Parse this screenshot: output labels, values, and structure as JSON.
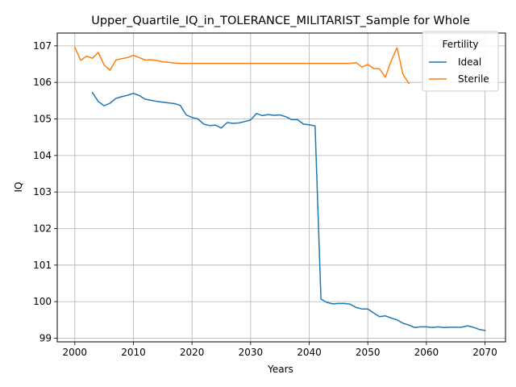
{
  "chart_data": {
    "type": "line",
    "title": "Upper_Quartile_IQ_in_TOLERANCE_MILITARIST_Sample for Whole",
    "xlabel": "Years",
    "ylabel": "IQ",
    "xlim": [
      1997,
      2073.5
    ],
    "ylim": [
      98.9,
      107.35
    ],
    "xticks": [
      2000,
      2010,
      2020,
      2030,
      2040,
      2050,
      2060,
      2070
    ],
    "yticks": [
      99,
      100,
      101,
      102,
      103,
      104,
      105,
      106,
      107
    ],
    "grid": true,
    "legend": {
      "title": "Fertility",
      "placement": "top-right"
    },
    "series": [
      {
        "name": "Ideal",
        "color": "#1f77b4",
        "x": [
          2003,
          2004,
          2005,
          2006,
          2007,
          2008,
          2009,
          2010,
          2011,
          2012,
          2013,
          2014,
          2015,
          2016,
          2017,
          2018,
          2019,
          2020,
          2021,
          2022,
          2023,
          2024,
          2025,
          2026,
          2027,
          2028,
          2029,
          2030,
          2031,
          2032,
          2033,
          2034,
          2035,
          2036,
          2037,
          2038,
          2039,
          2040,
          2041,
          2042,
          2043,
          2044,
          2045,
          2046,
          2047,
          2048,
          2049,
          2050,
          2051,
          2052,
          2053,
          2054,
          2055,
          2056,
          2057,
          2058,
          2059,
          2060,
          2061,
          2062,
          2063,
          2064,
          2065,
          2066,
          2067,
          2068,
          2069,
          2070
        ],
        "values": [
          105.72,
          105.48,
          105.36,
          105.43,
          105.56,
          105.61,
          105.65,
          105.7,
          105.64,
          105.54,
          105.51,
          105.48,
          105.46,
          105.44,
          105.42,
          105.37,
          105.11,
          105.04,
          105.0,
          104.86,
          104.82,
          104.83,
          104.75,
          104.9,
          104.88,
          104.89,
          104.93,
          104.97,
          105.15,
          105.09,
          105.12,
          105.1,
          105.11,
          105.06,
          104.98,
          104.98,
          104.86,
          104.84,
          104.81,
          100.07,
          99.98,
          99.94,
          99.95,
          99.95,
          99.93,
          99.84,
          99.8,
          99.8,
          99.69,
          99.59,
          99.61,
          99.55,
          99.5,
          99.41,
          99.36,
          99.29,
          99.31,
          99.31,
          99.29,
          99.31,
          99.29,
          99.3,
          99.3,
          99.3,
          99.34,
          99.3,
          99.24,
          99.21
        ]
      },
      {
        "name": "Sterile",
        "color": "#ff7f0e",
        "x": [
          2000,
          2001,
          2002,
          2003,
          2004,
          2005,
          2006,
          2007,
          2008,
          2009,
          2010,
          2011,
          2012,
          2013,
          2014,
          2015,
          2016,
          2017,
          2018,
          2019,
          2020,
          2021,
          2022,
          2023,
          2024,
          2025,
          2026,
          2027,
          2028,
          2029,
          2030,
          2031,
          2032,
          2033,
          2034,
          2035,
          2036,
          2037,
          2038,
          2039,
          2040,
          2041,
          2042,
          2043,
          2044,
          2045,
          2046,
          2047,
          2048,
          2049,
          2050,
          2051,
          2052,
          2053,
          2054,
          2055,
          2056,
          2057
        ],
        "values": [
          106.96,
          106.6,
          106.72,
          106.66,
          106.82,
          106.48,
          106.33,
          106.61,
          106.65,
          106.68,
          106.74,
          106.68,
          106.61,
          106.62,
          106.6,
          106.56,
          106.55,
          106.53,
          106.52,
          106.52,
          106.52,
          106.52,
          106.52,
          106.52,
          106.52,
          106.52,
          106.52,
          106.52,
          106.52,
          106.52,
          106.52,
          106.52,
          106.52,
          106.52,
          106.52,
          106.52,
          106.52,
          106.52,
          106.52,
          106.52,
          106.52,
          106.52,
          106.52,
          106.52,
          106.52,
          106.52,
          106.52,
          106.52,
          106.54,
          106.42,
          106.49,
          106.38,
          106.37,
          106.14,
          106.6,
          106.95,
          106.22,
          105.97
        ]
      }
    ]
  }
}
